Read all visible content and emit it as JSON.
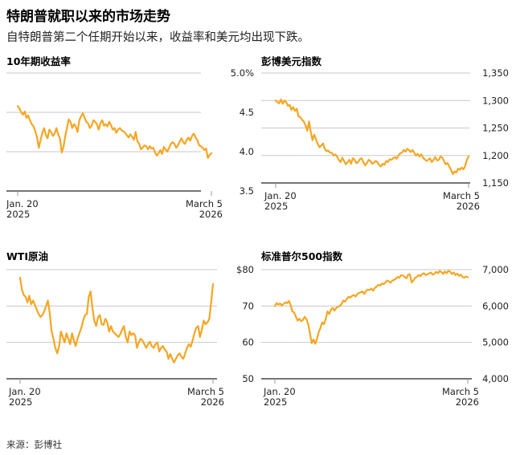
{
  "header": {
    "title": "特朗普就职以来的市场走势",
    "subtitle": "自特朗普第二个任期开始以来，收益率和美元均出现下跌。"
  },
  "footer": {
    "source": "来源：彭博社"
  },
  "colors": {
    "line": "#f5a623",
    "grid": "#c8c8c8",
    "axis": "#222222",
    "tick": "#999999"
  },
  "chart_data": [
    {
      "id": "yield",
      "type": "line",
      "title": "10年期收益率",
      "ylim": [
        3.5,
        5.0
      ],
      "yticks": [
        {
          "value": 5.0,
          "label": "5.0%"
        },
        {
          "value": 4.5,
          "label": "4.5"
        },
        {
          "value": 4.0,
          "label": "4.0"
        },
        {
          "value": 3.5,
          "label": "3.5"
        }
      ],
      "xticks": [
        {
          "t": 0,
          "line1": "Jan. 20",
          "line2": "2025"
        },
        {
          "t": 1,
          "line1": "March 5",
          "line2": "2026"
        }
      ],
      "series": [
        {
          "name": "10年期收益率",
          "values": [
            4.58,
            4.55,
            4.5,
            4.47,
            4.51,
            4.43,
            4.46,
            4.4,
            4.35,
            4.32,
            4.26,
            4.18,
            4.05,
            4.15,
            4.24,
            4.3,
            4.21,
            4.17,
            4.28,
            4.25,
            4.2,
            4.23,
            4.3,
            4.22,
            4.17,
            3.99,
            4.06,
            4.2,
            4.3,
            4.41,
            4.38,
            4.3,
            4.35,
            4.32,
            4.25,
            4.4,
            4.45,
            4.49,
            4.43,
            4.38,
            4.36,
            4.3,
            4.33,
            4.4,
            4.38,
            4.35,
            4.28,
            4.36,
            4.4,
            4.33,
            4.35,
            4.32,
            4.38,
            4.34,
            4.28,
            4.3,
            4.24,
            4.28,
            4.3,
            4.27,
            4.26,
            4.24,
            4.21,
            4.18,
            4.22,
            4.19,
            4.15,
            4.25,
            4.13,
            4.1,
            4.03,
            4.05,
            4.08,
            4.07,
            4.03,
            4.07,
            4.04,
            4.05,
            3.99,
            3.95,
            3.98,
            4.02,
            3.97,
            4.06,
            4.03,
            4.0,
            4.05,
            4.1,
            4.12,
            4.1,
            4.05,
            4.08,
            4.13,
            4.17,
            4.12,
            4.1,
            4.15,
            4.18,
            4.14,
            4.2,
            4.23,
            4.18,
            4.15,
            4.08,
            4.07,
            4.05,
            4.02,
            4.04,
            3.92,
            3.96,
            3.98
          ]
        }
      ]
    },
    {
      "id": "dxy",
      "type": "line",
      "title": "彭博美元指数",
      "ylim": [
        1150,
        1350
      ],
      "yticks": [
        {
          "value": 1350,
          "label": "1,350"
        },
        {
          "value": 1300,
          "label": "1,300"
        },
        {
          "value": 1250,
          "label": "1,250"
        },
        {
          "value": 1200,
          "label": "1,200"
        },
        {
          "value": 1150,
          "label": "1,150"
        }
      ],
      "xticks": [
        {
          "t": 0,
          "line1": "Jan. 20",
          "line2": "2025"
        },
        {
          "t": 1,
          "line1": "March 5",
          "line2": "2026"
        }
      ],
      "series": [
        {
          "name": "彭博美元指数",
          "values": [
            1300,
            1297,
            1295,
            1302,
            1294,
            1300,
            1297,
            1290,
            1292,
            1283,
            1288,
            1281,
            1285,
            1271,
            1270,
            1265,
            1262,
            1255,
            1245,
            1262,
            1243,
            1228,
            1238,
            1229,
            1221,
            1215,
            1218,
            1222,
            1212,
            1208,
            1209,
            1205,
            1205,
            1200,
            1202,
            1198,
            1192,
            1188,
            1196,
            1190,
            1184,
            1188,
            1192,
            1185,
            1195,
            1192,
            1186,
            1188,
            1193,
            1195,
            1188,
            1182,
            1186,
            1192,
            1190,
            1185,
            1187,
            1190,
            1188,
            1183,
            1180,
            1185,
            1183,
            1190,
            1188,
            1193,
            1192,
            1195,
            1197,
            1194,
            1200,
            1204,
            1205,
            1210,
            1207,
            1212,
            1210,
            1206,
            1210,
            1205,
            1200,
            1203,
            1198,
            1202,
            1196,
            1193,
            1190,
            1192,
            1195,
            1188,
            1192,
            1197,
            1191,
            1192,
            1198,
            1196,
            1190,
            1184,
            1186,
            1180,
            1174,
            1166,
            1171,
            1169,
            1176,
            1174,
            1178,
            1175,
            1180,
            1192,
            1198
          ]
        }
      ]
    },
    {
      "id": "wti",
      "type": "line",
      "title": "WTI原油",
      "ylim": [
        50,
        80
      ],
      "yticks": [
        {
          "value": 80,
          "label": "$80"
        },
        {
          "value": 70,
          "label": "70"
        },
        {
          "value": 60,
          "label": "60"
        },
        {
          "value": 50,
          "label": "50"
        }
      ],
      "xticks": [
        {
          "t": 0,
          "line1": "Jan. 20",
          "line2": "2025"
        },
        {
          "t": 1,
          "line1": "March 5",
          "line2": "2026"
        }
      ],
      "series": [
        {
          "name": "WTI原油",
          "values": [
            77.8,
            74.5,
            73.0,
            72.5,
            71.0,
            72.8,
            70.5,
            71.5,
            70.2,
            69.0,
            67.8,
            67.0,
            67.5,
            68.5,
            70.0,
            71.5,
            68.0,
            63.0,
            61.0,
            58.5,
            57.0,
            58.8,
            63.0,
            61.5,
            60.0,
            62.5,
            61.0,
            59.5,
            62.5,
            60.5,
            59.0,
            61.0,
            62.5,
            64.0,
            66.0,
            67.5,
            67.8,
            72.5,
            74.0,
            69.5,
            66.0,
            64.5,
            66.8,
            67.5,
            65.0,
            64.8,
            66.5,
            65.5,
            63.0,
            64.5,
            63.0,
            62.5,
            62.0,
            61.5,
            62.2,
            63.5,
            64.5,
            61.5,
            60.0,
            63.0,
            62.0,
            62.5,
            62.0,
            58.5,
            60.0,
            61.0,
            60.5,
            59.5,
            58.5,
            59.5,
            60.2,
            59.0,
            58.5,
            59.5,
            60.0,
            57.5,
            58.5,
            59.0,
            58.0,
            57.5,
            55.5,
            56.8,
            55.5,
            54.5,
            55.5,
            56.5,
            57.0,
            56.0,
            55.5,
            57.0,
            58.5,
            59.5,
            58.8,
            60.5,
            62.5,
            64.0,
            64.5,
            61.5,
            63.5,
            66.0,
            65.0,
            65.5,
            66.5,
            71.0,
            76.0
          ]
        }
      ]
    },
    {
      "id": "spx",
      "type": "line",
      "title": "标准普尔500指数",
      "ylim": [
        4000,
        7000
      ],
      "yticks": [
        {
          "value": 7000,
          "label": "7,000"
        },
        {
          "value": 6000,
          "label": "6,000"
        },
        {
          "value": 5000,
          "label": "5,000"
        },
        {
          "value": 4000,
          "label": "4,000"
        }
      ],
      "xticks": [
        {
          "t": 0,
          "line1": "Jan. 20",
          "line2": "2025"
        },
        {
          "t": 1,
          "line1": "March 5",
          "line2": "2026"
        }
      ],
      "series": [
        {
          "name": "标准普尔500指数",
          "values": [
            6000,
            6080,
            6040,
            6070,
            6010,
            6060,
            6100,
            6080,
            6140,
            6030,
            5850,
            5820,
            5700,
            5600,
            5650,
            5580,
            5620,
            5700,
            5640,
            5500,
            5250,
            4980,
            5080,
            4960,
            5100,
            5280,
            5400,
            5550,
            5500,
            5650,
            5850,
            5780,
            5900,
            5950,
            5870,
            5950,
            5980,
            6000,
            6050,
            6150,
            6120,
            6200,
            6250,
            6230,
            6280,
            6300,
            6260,
            6330,
            6360,
            6380,
            6400,
            6330,
            6420,
            6450,
            6440,
            6480,
            6420,
            6500,
            6530,
            6580,
            6560,
            6620,
            6600,
            6650,
            6700,
            6680,
            6640,
            6700,
            6720,
            6750,
            6800,
            6780,
            6850,
            6840,
            6800,
            6760,
            6860,
            6870,
            6650,
            6700,
            6780,
            6800,
            6850,
            6820,
            6880,
            6900,
            6850,
            6870,
            6900,
            6920,
            6860,
            6880,
            6940,
            6900,
            6960,
            6930,
            6880,
            6950,
            6900,
            6970,
            6940,
            6880,
            6920,
            6850,
            6890,
            6830,
            6860,
            6800,
            6780,
            6810,
            6790
          ]
        }
      ]
    }
  ]
}
